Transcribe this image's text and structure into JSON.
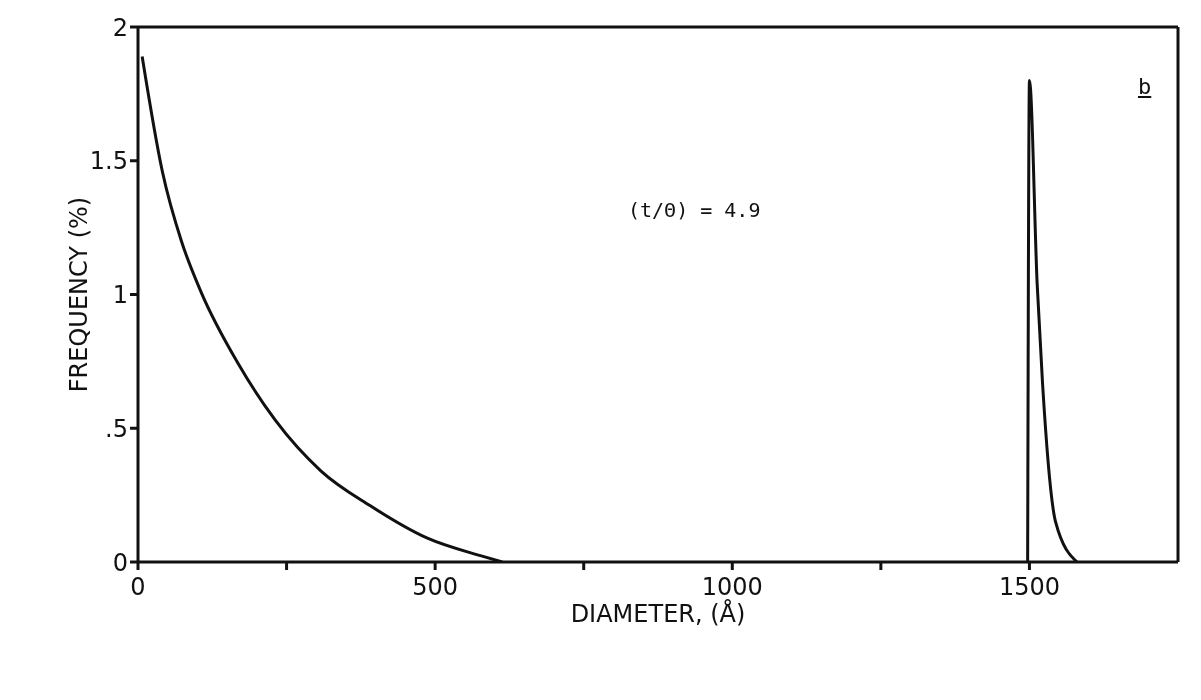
{
  "chart_data": {
    "type": "line",
    "xlabel": "DIAMETER, (Å)",
    "ylabel": "FREQUENCY (%)",
    "annotations": [
      "(t/Θ) = 4.9",
      "b"
    ],
    "xlim": [
      0,
      1750
    ],
    "xticks": [
      0,
      {
        "value": 250,
        "label": null
      },
      500,
      {
        "value": 750,
        "label": null
      },
      1000,
      {
        "value": 1250,
        "label": null
      },
      1500
    ],
    "ylim": [
      0,
      2
    ],
    "yticks": [
      0,
      {
        "value": 0.5,
        "label": ".5"
      },
      1,
      1.5,
      2
    ],
    "marker": "none",
    "line_style": "solid",
    "series": [
      {
        "color": "#111111",
        "x": [
          7,
          41,
          73,
          106,
          169,
          231,
          308,
          391,
          486,
          582,
          613
        ],
        "values": [
          1.89,
          1.46,
          1.2,
          1.01,
          0.74,
          0.53,
          0.34,
          0.21,
          0.09,
          0.02,
          0
        ]
      },
      {
        "color": "#111111",
        "x": [
          1497,
          1500,
          1513,
          1522,
          1544,
          1580
        ],
        "values": [
          0,
          1.8,
          1.04,
          0.67,
          0.15,
          0
        ]
      }
    ]
  }
}
